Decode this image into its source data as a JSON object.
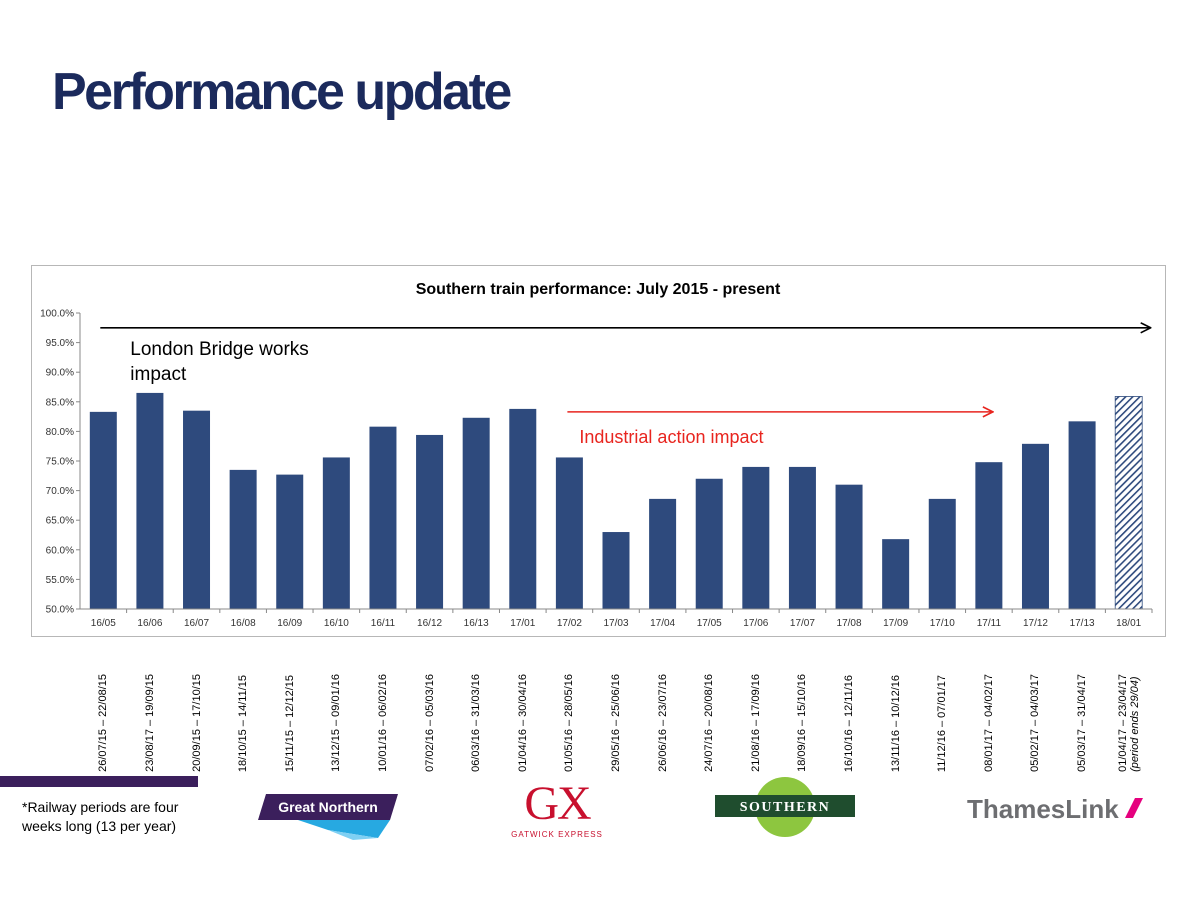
{
  "title": "Performance update",
  "chart_data": {
    "type": "bar",
    "title": "Southern train performance: July 2015 - present",
    "categories": [
      "16/05",
      "16/06",
      "16/07",
      "16/08",
      "16/09",
      "16/10",
      "16/11",
      "16/12",
      "16/13",
      "17/01",
      "17/02",
      "17/03",
      "17/04",
      "17/05",
      "17/06",
      "17/07",
      "17/08",
      "17/09",
      "17/10",
      "17/11",
      "17/12",
      "17/13",
      "18/01"
    ],
    "values": [
      83.3,
      86.5,
      83.5,
      73.5,
      72.7,
      75.6,
      80.8,
      79.4,
      82.3,
      83.8,
      75.6,
      63.0,
      68.6,
      72.0,
      74.0,
      74.0,
      71.0,
      61.8,
      68.6,
      74.8,
      77.9,
      81.7,
      85.9
    ],
    "highlight_last": "hatched (partial period)",
    "ylim": [
      50,
      100
    ],
    "yticks": [
      "50.0%",
      "55.0%",
      "60.0%",
      "65.0%",
      "70.0%",
      "75.0%",
      "80.0%",
      "85.0%",
      "90.0%",
      "95.0%",
      "100.0%"
    ],
    "xlabel": "",
    "ylabel": "",
    "annotations": [
      {
        "text": "London Bridge works",
        "text2": "impact",
        "color": "#000000",
        "from_category": "16/05",
        "to_category": "18/01"
      },
      {
        "text": "Industrial action impact",
        "color": "#e8251f",
        "from_category": "17/02",
        "to_category": "17/11"
      }
    ]
  },
  "period_dates": [
    {
      "text": "26/07/15 – 22/08/15"
    },
    {
      "text": "23/08/17 – 19/09/15"
    },
    {
      "text": "20/09/15 – 17/10/15"
    },
    {
      "text": "18/10/15 – 14/11/15"
    },
    {
      "text": "15/11/15 – 12/12/15"
    },
    {
      "text": "13/12/15 – 09/01/16"
    },
    {
      "text": "10/01/16 – 06/02/16"
    },
    {
      "text": "07/02/16 – 05/03/16"
    },
    {
      "text": "06/03/16 – 31/03/16"
    },
    {
      "text": "01/04/16 – 30/04/16"
    },
    {
      "text": "01/05/16 – 28/05/16"
    },
    {
      "text": "29/05/16 – 25/06/16"
    },
    {
      "text": "26/06/16 – 23/07/16"
    },
    {
      "text": "24/07/16 – 20/08/16"
    },
    {
      "text": "21/08/16 – 17/09/16"
    },
    {
      "text": "18/09/16 – 15/10/16"
    },
    {
      "text": "16/10/16 – 12/11/16"
    },
    {
      "text": "13/11/16 – 10/12/16"
    },
    {
      "text": "11/12/16 – 07/01/17"
    },
    {
      "text": "08/01/17 – 04/02/17"
    },
    {
      "text": "05/02/17 – 04/03/17"
    },
    {
      "text": "05/03/17 – 31/04/17"
    },
    {
      "text": "01/04/17 – 23/04/17",
      "note": "(period ends 29/04)"
    }
  ],
  "footnote": "*Railway periods are four weeks long (13 per year)",
  "logos": {
    "great_northern": "Great Northern",
    "gx_mark": "GX",
    "gx_name": "GATWICK EXPRESS",
    "southern": "SOUTHERN",
    "thameslink": "ThamesLink"
  },
  "colors": {
    "bar": "#2e4a7d",
    "title": "#1b2a5c",
    "industrial": "#e8251f",
    "gn_purple": "#3b1f5c",
    "gx_red": "#c8102e",
    "southern_green": "#8dc63f",
    "southern_dark": "#1f4d2e",
    "thameslink_grey": "#6d6e71",
    "thameslink_pink": "#e5007e"
  }
}
